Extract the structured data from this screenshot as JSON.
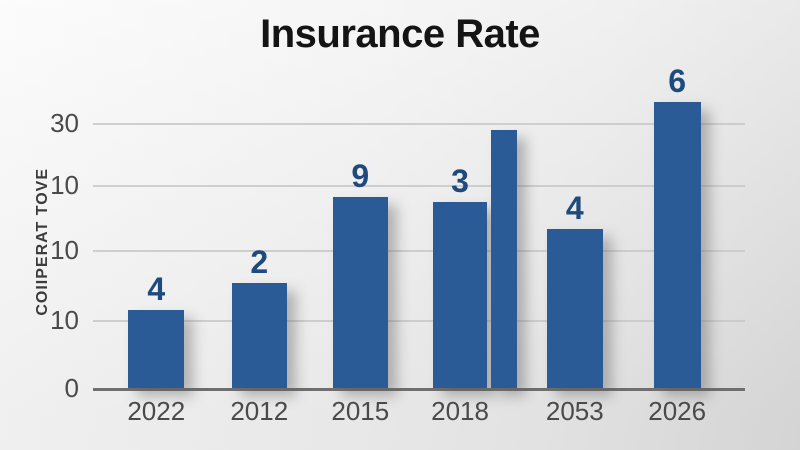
{
  "chart_data": {
    "type": "bar",
    "title": "Insurance Rate",
    "ylabel": "COIIPERAT TOVE",
    "xlabel": "",
    "grid": "horizontal",
    "legend": "none",
    "y_tick_labels_top_to_bottom": [
      "30",
      "10",
      "10",
      "10",
      "0"
    ],
    "y_ticks": [
      {
        "label": "30",
        "pos_pct": 9.2
      },
      {
        "label": "10",
        "pos_pct": 30.5
      },
      {
        "label": "10",
        "pos_pct": 52.7
      },
      {
        "label": "10",
        "pos_pct": 76.7
      },
      {
        "label": "0",
        "pos_pct": 100
      }
    ],
    "categories": [
      "2022",
      "2012",
      "2015",
      "2018",
      "",
      "2053",
      "2026"
    ],
    "data_labels": [
      "4",
      "2",
      "9",
      "3",
      "",
      "4",
      "6"
    ],
    "bars": [
      {
        "category": "2022",
        "label": "4",
        "height_pct": 26.7,
        "left_pct": 5.4,
        "width_pct": 8.6
      },
      {
        "category": "2012",
        "label": "2",
        "height_pct": 36.0,
        "left_pct": 21.3,
        "width_pct": 8.4
      },
      {
        "category": "2015",
        "label": "9",
        "height_pct": 65.4,
        "left_pct": 36.8,
        "width_pct": 8.4
      },
      {
        "category": "2018",
        "label": "3",
        "height_pct": 63.7,
        "left_pct": 52.1,
        "width_pct": 8.4
      },
      {
        "category": "",
        "label": "",
        "height_pct": 88.4,
        "left_pct": 61.0,
        "width_pct": 4.0
      },
      {
        "category": "2053",
        "label": "4",
        "height_pct": 54.5,
        "left_pct": 69.6,
        "width_pct": 8.6
      },
      {
        "category": "2026",
        "label": "6",
        "height_pct": 98.0,
        "left_pct": 86.0,
        "width_pct": 7.2
      }
    ],
    "colors": {
      "bar": "#2a5b97",
      "data_label": "#1f4a7d",
      "title": "#141414",
      "axis_text": "#4a4a4a",
      "y_axis_title_text": "#3c3c3c",
      "gridline": "#c8c8c8",
      "axis_line": "#6f6f6f",
      "background": "#ededed"
    }
  }
}
